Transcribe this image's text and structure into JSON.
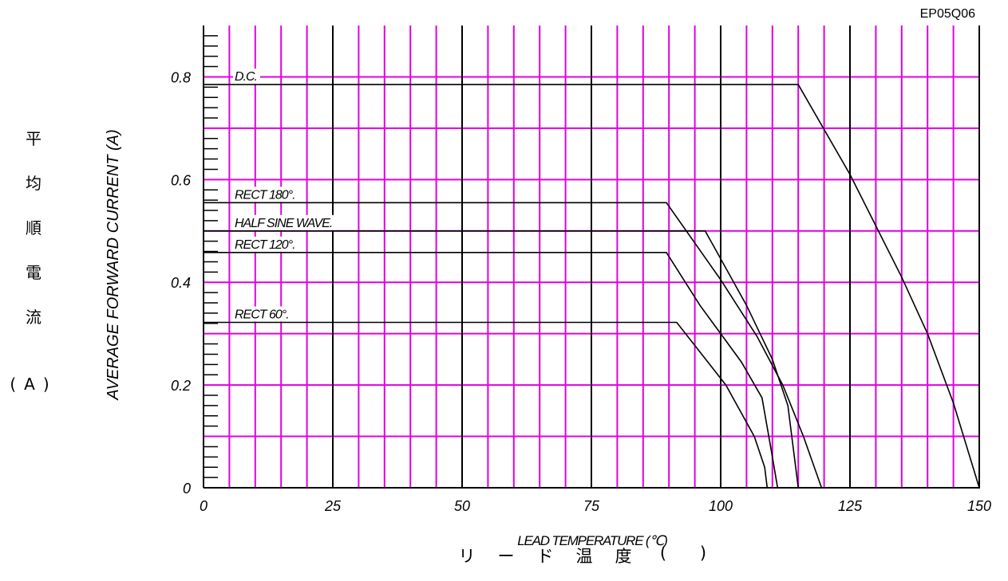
{
  "chart_data": {
    "type": "line",
    "code": "EP05Q06",
    "xlabel": "LEAD TEMPERATURE (℃)",
    "ylabel": "AVERAGE FORWARD CURRENT (A)",
    "xlabel_jp": [
      "リ",
      "ー",
      "ド",
      "温",
      "度",
      "(",
      ")"
    ],
    "ylabel_jp": [
      "平",
      "均",
      "順",
      "電",
      "流",
      "(A)"
    ],
    "xlim": [
      0,
      150
    ],
    "ylim": [
      0,
      0.9
    ],
    "x_ticks": [
      "0",
      "25",
      "50",
      "75",
      "100",
      "125",
      "150"
    ],
    "y_ticks": [
      "0",
      "0.2",
      "0.4",
      "0.6",
      "0.8"
    ],
    "grid": true,
    "series": [
      {
        "name": "D.C.",
        "points": [
          [
            0,
            0.785
          ],
          [
            115,
            0.785
          ],
          [
            125,
            0.61
          ],
          [
            135,
            0.41
          ],
          [
            140,
            0.3
          ],
          [
            145,
            0.165
          ],
          [
            150,
            0.0
          ]
        ]
      },
      {
        "name": "RECT 180°.",
        "points": [
          [
            0,
            0.555
          ],
          [
            89.5,
            0.555
          ],
          [
            100,
            0.405
          ],
          [
            107,
            0.295
          ],
          [
            112,
            0.2
          ],
          [
            116,
            0.1
          ],
          [
            119.5,
            0.0
          ]
        ]
      },
      {
        "name": "HALF SINE WAVE.",
        "points": [
          [
            0,
            0.5
          ],
          [
            97,
            0.5
          ],
          [
            105,
            0.355
          ],
          [
            110,
            0.25
          ],
          [
            113,
            0.16
          ],
          [
            115,
            0.0
          ]
        ]
      },
      {
        "name": "RECT 120°.",
        "points": [
          [
            0,
            0.458
          ],
          [
            89.5,
            0.458
          ],
          [
            96,
            0.355
          ],
          [
            104,
            0.245
          ],
          [
            108,
            0.175
          ],
          [
            110,
            0.06
          ],
          [
            111,
            0.0
          ]
        ]
      },
      {
        "name": "RECT 60°.",
        "points": [
          [
            0,
            0.322
          ],
          [
            91.5,
            0.322
          ],
          [
            101,
            0.2
          ],
          [
            106.5,
            0.1
          ],
          [
            108.5,
            0.04
          ],
          [
            109,
            0.0
          ]
        ]
      }
    ]
  }
}
